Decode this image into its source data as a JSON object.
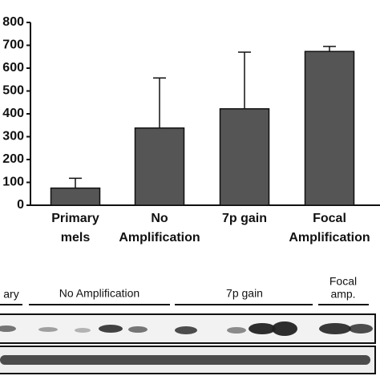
{
  "chart_data": {
    "type": "bar",
    "categories": [
      [
        "Primary",
        "mels"
      ],
      [
        "No",
        "Amplification"
      ],
      [
        "7p gain"
      ],
      [
        "Focal",
        "Amplification"
      ]
    ],
    "values": [
      75,
      338,
      422,
      673
    ],
    "errors": [
      43,
      219,
      248,
      22
    ],
    "color": "#555555",
    "ylim": [
      0,
      800
    ],
    "yticks": [
      0,
      100,
      200,
      300,
      400,
      500,
      600,
      700,
      800
    ],
    "grid": false
  },
  "blot": {
    "labels": [
      "ary",
      "No Amplification",
      "7p gain",
      [
        "Focal",
        "amp."
      ]
    ]
  }
}
